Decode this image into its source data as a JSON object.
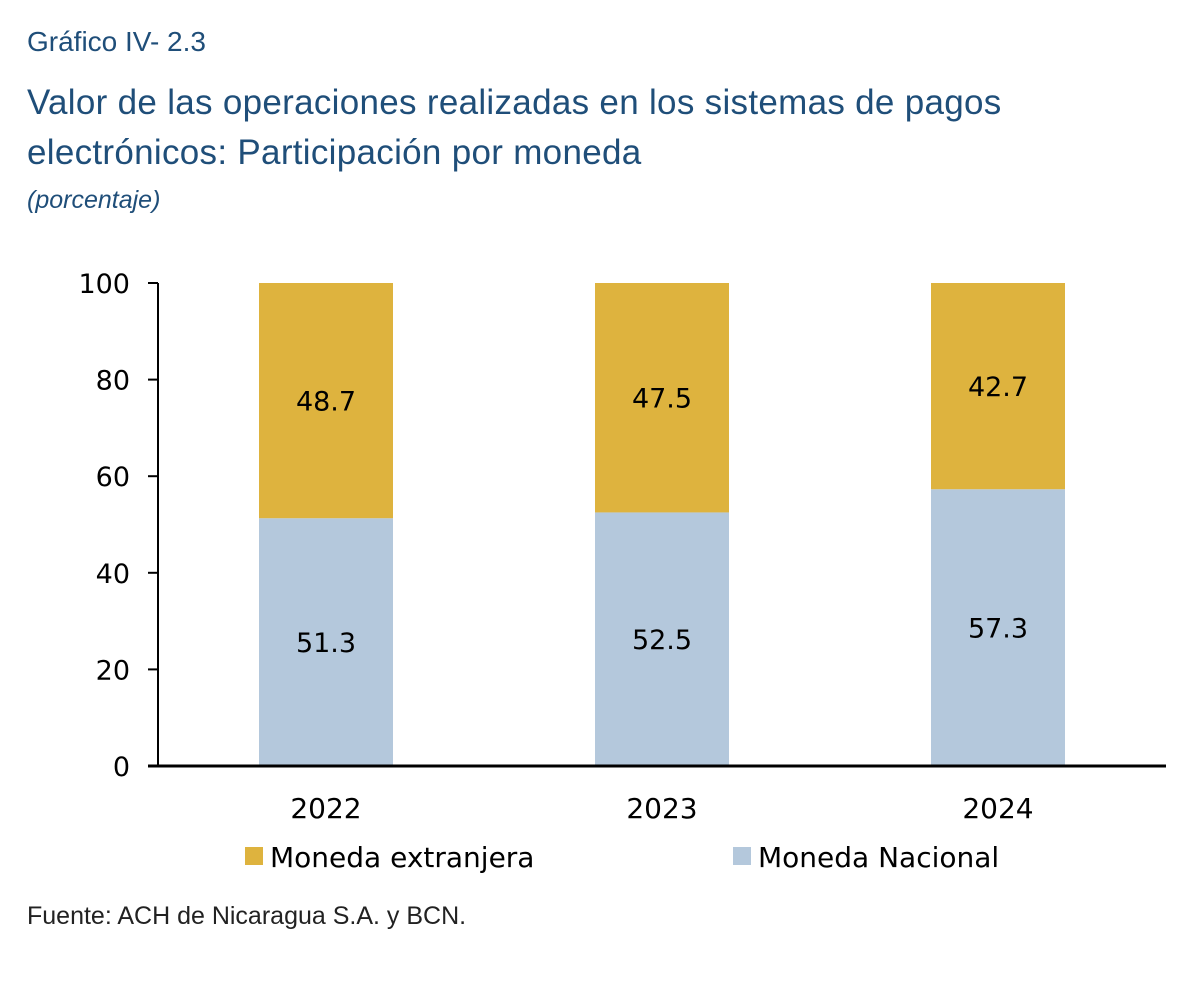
{
  "header": {
    "label": "Gráfico IV- 2.3",
    "title_line1": "Valor de las operaciones realizadas en los sistemas de pagos",
    "title_line2": "electrónicos: Participación por moneda",
    "unit": "(porcentaje)"
  },
  "source": "Fuente: ACH de Nicaragua S.A. y BCN.",
  "colors": {
    "moneda_extranjera": "#deb33e",
    "moneda_nacional": "#b4c8dc",
    "axis": "#000000"
  },
  "chart_data": {
    "type": "bar",
    "stacked": true,
    "categories": [
      "2022",
      "2023",
      "2024"
    ],
    "series": [
      {
        "name": "Moneda Nacional",
        "values": [
          51.3,
          52.5,
          57.3
        ]
      },
      {
        "name": "Moneda extranjera",
        "values": [
          48.7,
          47.5,
          42.7
        ]
      }
    ],
    "ylim": [
      0,
      100
    ],
    "yticks": [
      0,
      20,
      40,
      60,
      80,
      100
    ],
    "xlabel": "",
    "ylabel": "",
    "grid": false,
    "legend": [
      "Moneda extranjera",
      "Moneda Nacional"
    ],
    "legend_position": "bottom",
    "data_labels": true
  }
}
